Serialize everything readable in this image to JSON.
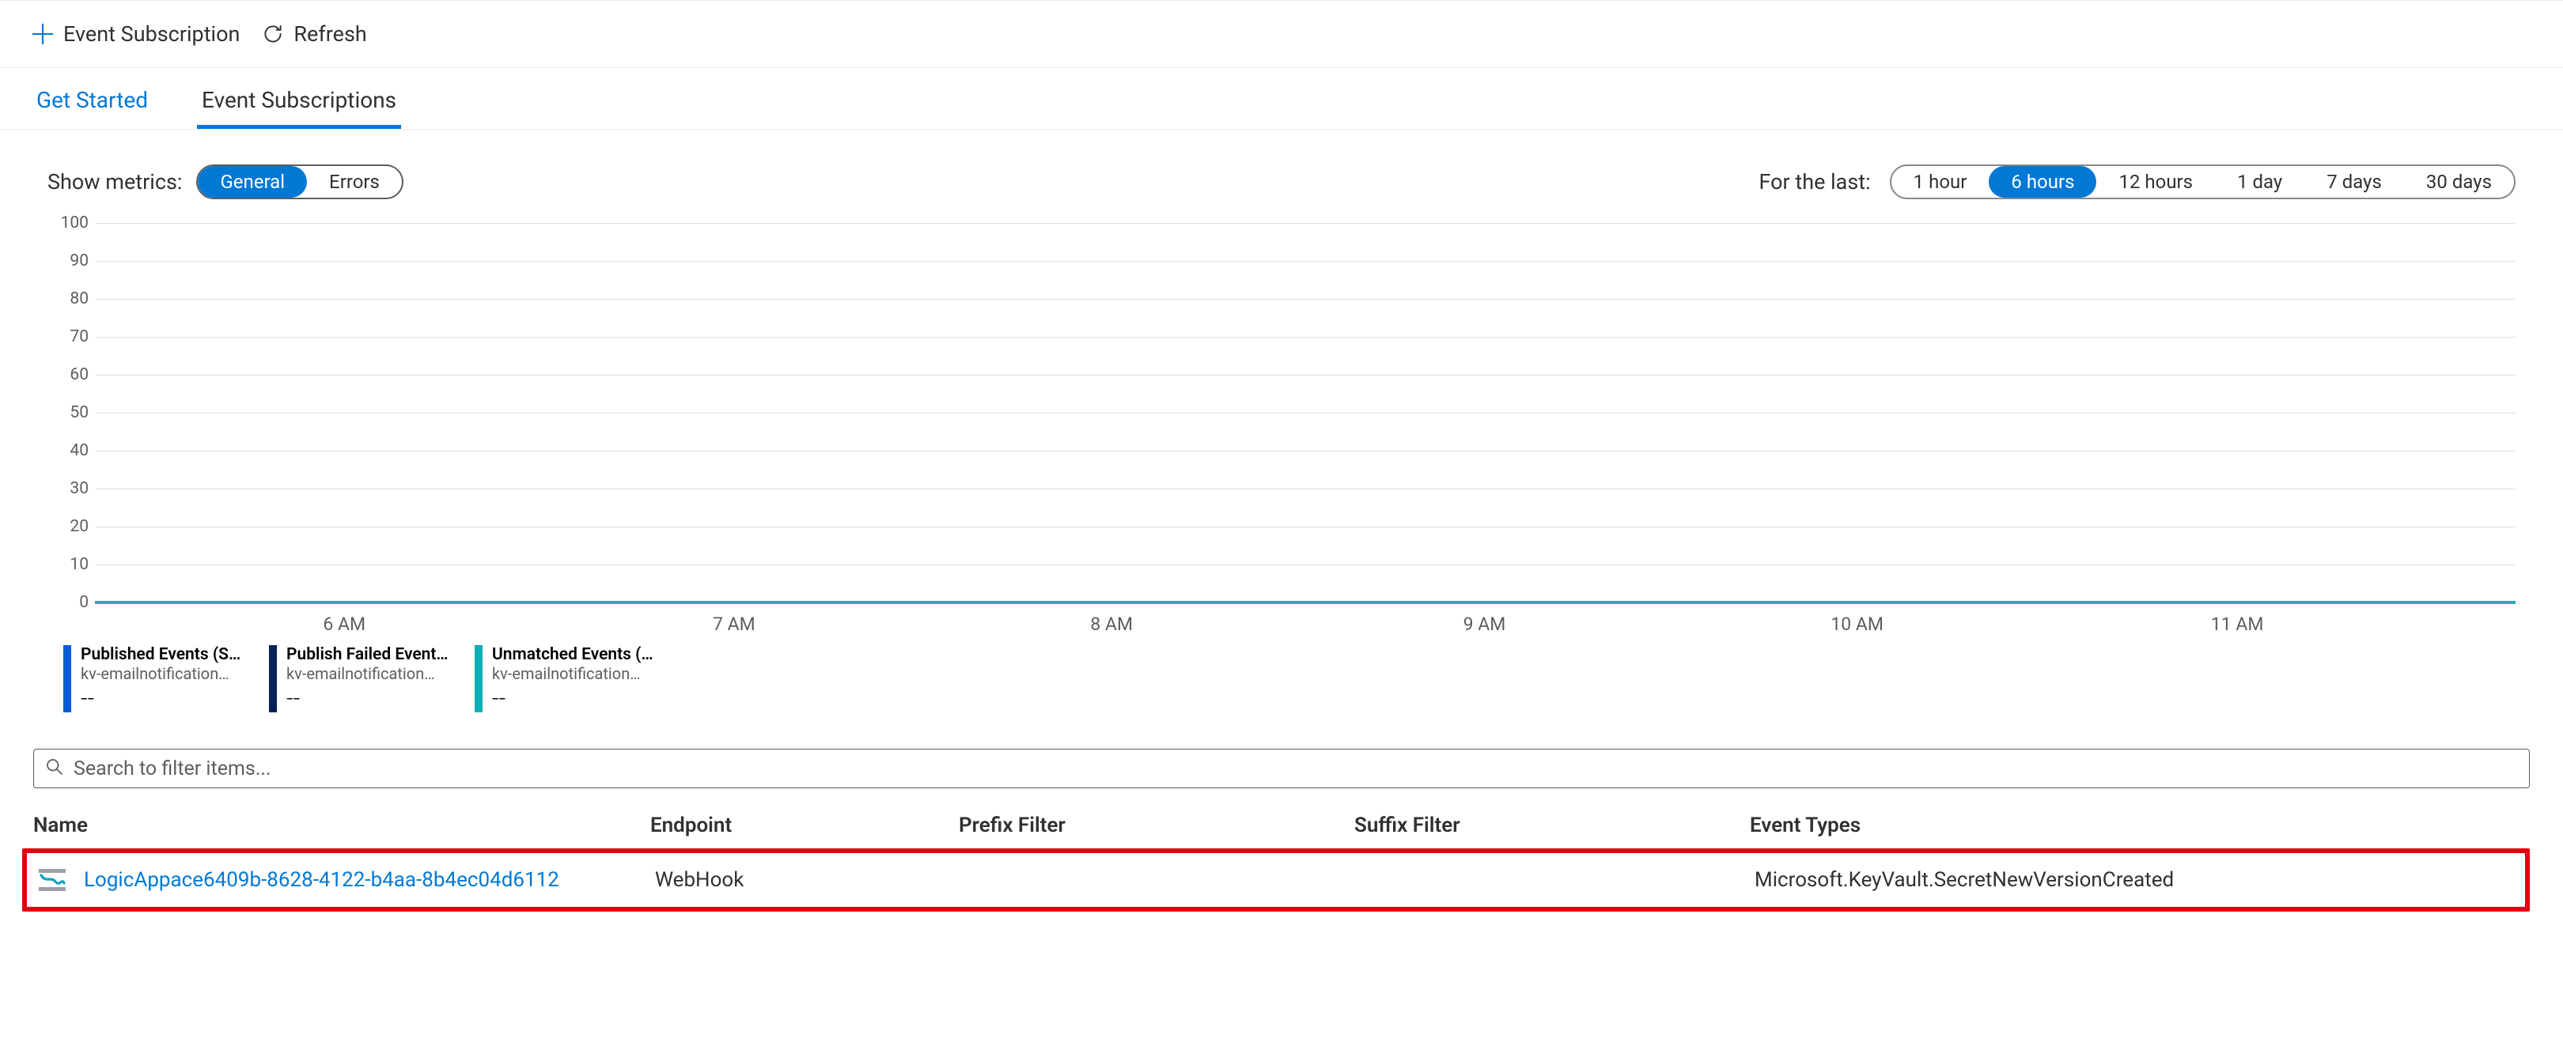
{
  "commandbar": {
    "add_label": "Event Subscription",
    "refresh_label": "Refresh"
  },
  "tabs": {
    "get_started": "Get Started",
    "event_subs": "Event Subscriptions"
  },
  "filters": {
    "metrics_label": "Show metrics:",
    "metrics_options": {
      "general": "General",
      "errors": "Errors"
    },
    "metrics_selected": "general",
    "time_label": "For the last:",
    "time_options": {
      "1h": "1 hour",
      "6h": "6 hours",
      "12h": "12 hours",
      "1d": "1 day",
      "7d": "7 days",
      "30d": "30 days"
    },
    "time_selected": "6h"
  },
  "chart": {
    "type": "line",
    "ylim": [
      0,
      100
    ],
    "ytick_step": 10,
    "ytick_labels": [
      "0",
      "10",
      "20",
      "30",
      "40",
      "50",
      "60",
      "70",
      "80",
      "90",
      "100"
    ],
    "grid_color": "#e1dfdd",
    "axis_color": "#a19f9d",
    "xticks": [
      {
        "label": "6 AM",
        "pos_pct": 10.3
      },
      {
        "label": "7 AM",
        "pos_pct": 26.4
      },
      {
        "label": "8 AM",
        "pos_pct": 42.0
      },
      {
        "label": "9 AM",
        "pos_pct": 57.4
      },
      {
        "label": "10 AM",
        "pos_pct": 72.8
      },
      {
        "label": "11 AM",
        "pos_pct": 88.5
      }
    ],
    "series_flat_value": 0,
    "series_color": "#2aa9b8"
  },
  "legend": [
    {
      "title": "Published Events (Sum)",
      "sub": "kv-emailnotification…",
      "value": "--",
      "color": "#015cda"
    },
    {
      "title": "Publish Failed Event…",
      "sub": "kv-emailnotification…",
      "value": "--",
      "color": "#062158"
    },
    {
      "title": "Unmatched Events (Sum)",
      "sub": "kv-emailnotification…",
      "value": "--",
      "color": "#10aeb6"
    }
  ],
  "search": {
    "placeholder": "Search to filter items..."
  },
  "table": {
    "columns": {
      "name": "Name",
      "endpoint": "Endpoint",
      "prefix": "Prefix Filter",
      "suffix": "Suffix Filter",
      "event_types": "Event Types"
    },
    "rows": [
      {
        "name": "LogicAppace6409b-8628-4122-b4aa-8b4ec04d6112",
        "endpoint": "WebHook",
        "prefix": "",
        "suffix": "",
        "event_types": "Microsoft.KeyVault.SecretNewVersionCreated"
      }
    ]
  },
  "colors": {
    "link": "#0078d4",
    "highlight_border": "#e3000f"
  }
}
